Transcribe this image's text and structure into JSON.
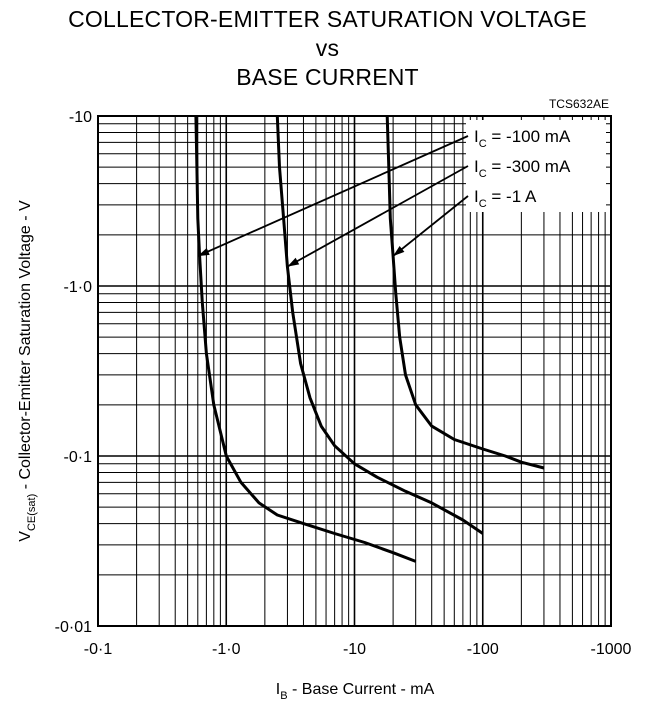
{
  "chart_data": {
    "type": "line",
    "title": [
      "COLLECTOR-EMITTER SATURATION VOLTAGE",
      "vs",
      "BASE CURRENT"
    ],
    "figure_code": "TCS632AE",
    "xlabel": {
      "main": "I",
      "sub": "B",
      "rest": " - Base Current - mA"
    },
    "ylabel": {
      "main": "V",
      "sub": "CE(sat)",
      "rest": " - Collector-Emitter Saturation Voltage - V"
    },
    "x_scale": "log",
    "y_scale": "log",
    "x_reversed_negative": true,
    "y_reversed_negative": true,
    "xlim": [
      -0.1,
      -1000
    ],
    "ylim": [
      -0.01,
      -10
    ],
    "x_ticks": [
      -0.1,
      -1,
      -10,
      -100,
      -1000
    ],
    "x_tick_labels": [
      "-0·1",
      "-1·0",
      "-10",
      "-100",
      "-1000"
    ],
    "y_ticks": [
      -0.01,
      -0.1,
      -1,
      -10
    ],
    "y_tick_labels": [
      "-0·01",
      "-0·1",
      "-1·0",
      "-10"
    ],
    "grid": true,
    "series": [
      {
        "label_main": "I",
        "label_sub": "C",
        "label_rest": " = -100 mA",
        "x": [
          -0.58,
          -0.59,
          -0.6,
          -0.62,
          -0.65,
          -0.7,
          -0.8,
          -1.0,
          -1.3,
          -1.8,
          -2.5,
          -4,
          -7,
          -12,
          -20,
          -30
        ],
        "y": [
          -10,
          -5,
          -2.5,
          -1.5,
          -0.8,
          -0.4,
          -0.2,
          -0.1,
          -0.07,
          -0.053,
          -0.045,
          -0.04,
          -0.035,
          -0.031,
          -0.027,
          -0.024
        ]
      },
      {
        "label_main": "I",
        "label_sub": "C",
        "label_rest": " = -300 mA",
        "x": [
          -2.5,
          -2.6,
          -2.8,
          -3.0,
          -3.3,
          -3.8,
          -4.5,
          -5.5,
          -7,
          -10,
          -15,
          -25,
          -40,
          -70,
          -100
        ],
        "y": [
          -10,
          -5,
          -2.5,
          -1.3,
          -0.7,
          -0.35,
          -0.22,
          -0.15,
          -0.115,
          -0.09,
          -0.075,
          -0.062,
          -0.053,
          -0.042,
          -0.035
        ]
      },
      {
        "label_main": "I",
        "label_sub": "C",
        "label_rest": " = -1 A",
        "x": [
          -18,
          -18.5,
          -19,
          -20,
          -21,
          -22.5,
          -25,
          -30,
          -40,
          -60,
          -100,
          -150,
          -200,
          -300
        ],
        "y": [
          -10,
          -5,
          -2.5,
          -1.5,
          -0.9,
          -0.5,
          -0.3,
          -0.2,
          -0.15,
          -0.125,
          -0.11,
          -0.1,
          -0.092,
          -0.085
        ]
      }
    ],
    "annotation_arrow_targets": [
      {
        "x": -0.6,
        "y": -1.5
      },
      {
        "x": -3.0,
        "y": -1.3
      },
      {
        "x": -20,
        "y": -1.5
      }
    ]
  }
}
